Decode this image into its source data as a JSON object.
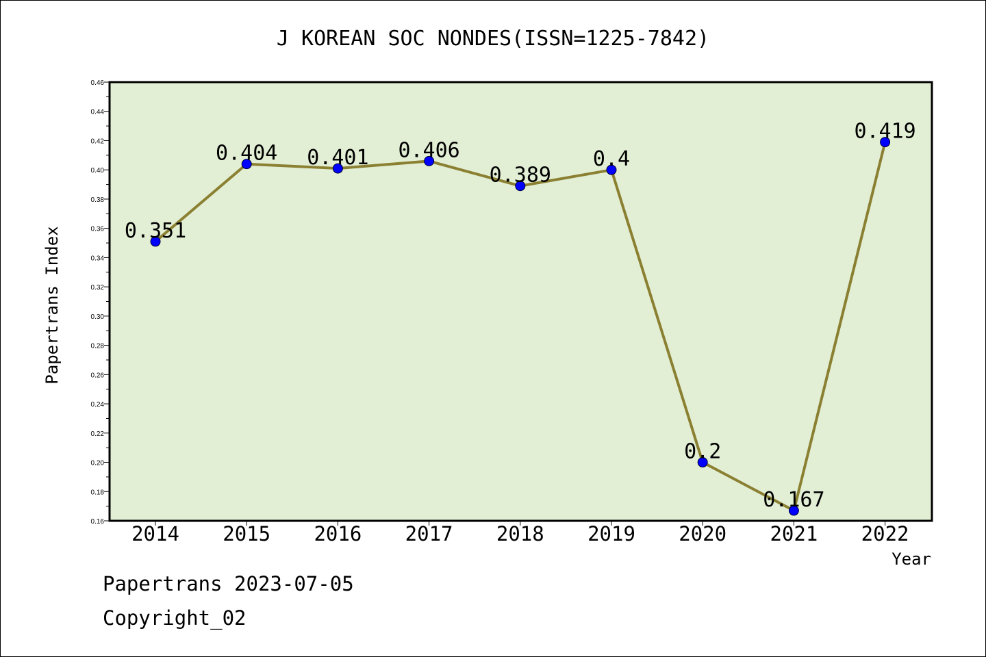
{
  "chart_data": {
    "type": "line",
    "title": "J KOREAN SOC NONDES(ISSN=1225-7842)",
    "xlabel": "Year",
    "ylabel": "Papertrans Index",
    "categories": [
      "2014",
      "2015",
      "2016",
      "2017",
      "2018",
      "2019",
      "2020",
      "2021",
      "2022"
    ],
    "series": [
      {
        "values": [
          0.351,
          0.404,
          0.401,
          0.406,
          0.389,
          0.4,
          0.2,
          0.167,
          0.419
        ]
      }
    ],
    "data_labels": [
      "0.351",
      "0.404",
      "0.401",
      "0.406",
      "0.389",
      "0.4",
      "0.2",
      "0.167",
      "0.419"
    ],
    "ylim": [
      0.16,
      0.46
    ],
    "yticks": [
      "0.16",
      "0.18",
      "0.20",
      "0.22",
      "0.24",
      "0.26",
      "0.28",
      "0.30",
      "0.32",
      "0.34",
      "0.36",
      "0.38",
      "0.40",
      "0.42",
      "0.44",
      "0.46"
    ],
    "grid": false,
    "legend": "none",
    "colors": {
      "plot_background": "#e2efd5",
      "line": "#8b8032",
      "marker": "#0000ff"
    }
  },
  "footer": {
    "line1": "Papertrans 2023-07-05",
    "line2": "Copyright_02"
  }
}
